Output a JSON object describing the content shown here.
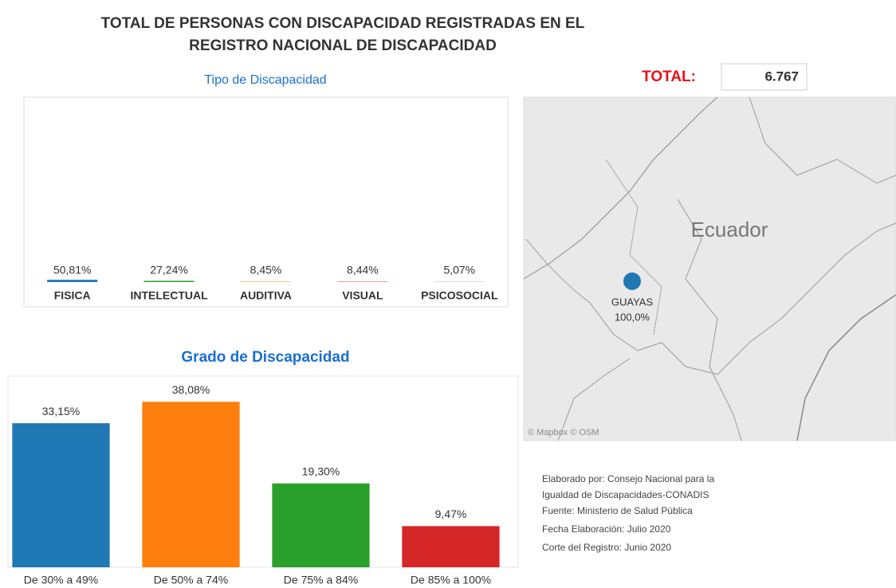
{
  "title_lines": [
    "TOTAL DE PERSONAS CON DISCAPACIDAD REGISTRADAS EN EL",
    "REGISTRO NACIONAL DE DISCAPACIDAD"
  ],
  "total": {
    "label": "TOTAL:",
    "value": "6.767"
  },
  "chart_data": [
    {
      "type": "bar",
      "title": "Tipo de Discapacidad",
      "categories": [
        "FISICA",
        "INTELECTUAL",
        "AUDITIVA",
        "VISUAL",
        "PSICOSOCIAL"
      ],
      "values": [
        50.81,
        27.24,
        8.45,
        8.44,
        5.07
      ],
      "value_labels": [
        "50,81%",
        "27,24%",
        "8,45%",
        "8,44%",
        "5,07%"
      ],
      "colors": [
        "#1f77b4",
        "#2ca02c",
        "#ff7f0e",
        "#d62728",
        "#9467bd"
      ],
      "ylim": [
        0,
        4000
      ]
    },
    {
      "type": "bar",
      "title": "Grado de Discapacidad",
      "categories": [
        "De 30% a 49%",
        "De 50% a 74%",
        "De 75% a 84%",
        "De 85% a 100%"
      ],
      "values": [
        33.15,
        38.08,
        19.3,
        9.47
      ],
      "value_labels": [
        "33,15%",
        "38,08%",
        "19,30%",
        "9,47%"
      ],
      "colors": [
        "#1f77b4",
        "#ff7f0e",
        "#2ca02c",
        "#d62728"
      ],
      "ylim": [
        0,
        44
      ]
    }
  ],
  "map": {
    "country": "Ecuador",
    "point": {
      "name": "GUAYAS",
      "value": 100.0,
      "value_label": "100,0%"
    },
    "attribution": "© Mapbox  © OSM"
  },
  "notes": [
    "Elaborado por: Consejo Nacional para la",
    "Igualdad de Discapacidades-CONADIS",
    "Fuente: Ministerio de Salud Pública",
    "Fecha Elaboración: Julio 2020",
    "Corte del Registro: Junio 2020"
  ]
}
